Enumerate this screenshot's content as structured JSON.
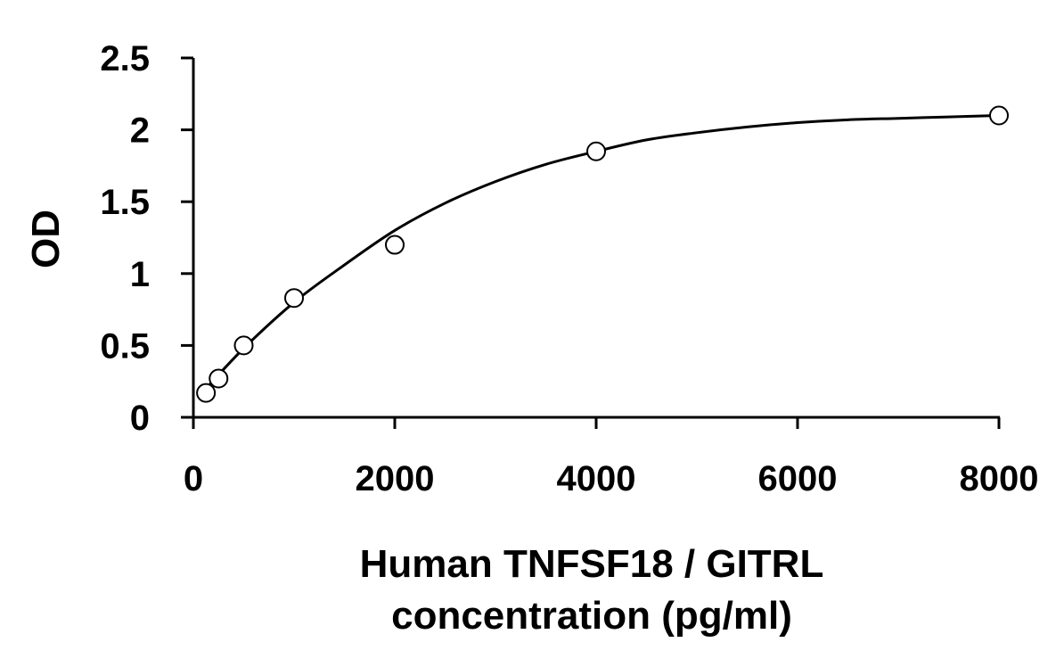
{
  "chart_data": {
    "type": "scatter",
    "title": "",
    "xlabel_lines": [
      "Human TNFSF18 / GITRL",
      "concentration (pg/ml)"
    ],
    "ylabel": "OD",
    "xlim": [
      0,
      8000
    ],
    "ylim": [
      0,
      2.5
    ],
    "x_ticks": [
      0,
      2000,
      4000,
      6000,
      8000
    ],
    "x_tick_labels": [
      "0",
      "2000",
      "4000",
      "6000",
      "8000"
    ],
    "y_ticks": [
      0,
      0.5,
      1,
      1.5,
      2,
      2.5
    ],
    "y_tick_labels": [
      "0",
      "0.5",
      "1",
      "1.5",
      "2",
      "2.5"
    ],
    "grid": false,
    "legend": "none",
    "series": [
      {
        "marker": "open-circle",
        "color": "#000000",
        "x": [
          125,
          250,
          500,
          1000,
          2000,
          4000,
          8000
        ],
        "y": [
          0.17,
          0.27,
          0.5,
          0.83,
          1.2,
          1.85,
          2.1
        ]
      }
    ],
    "fit_curve": {
      "color": "#000000",
      "x": [
        125,
        500,
        1000,
        1500,
        2000,
        2500,
        3000,
        3500,
        4000,
        4500,
        5000,
        5500,
        6000,
        6500,
        7000,
        7500,
        8000
      ],
      "y": [
        0.2,
        0.48,
        0.8,
        1.06,
        1.3,
        1.49,
        1.64,
        1.76,
        1.85,
        1.93,
        1.98,
        2.02,
        2.05,
        2.07,
        2.08,
        2.09,
        2.1
      ]
    }
  }
}
